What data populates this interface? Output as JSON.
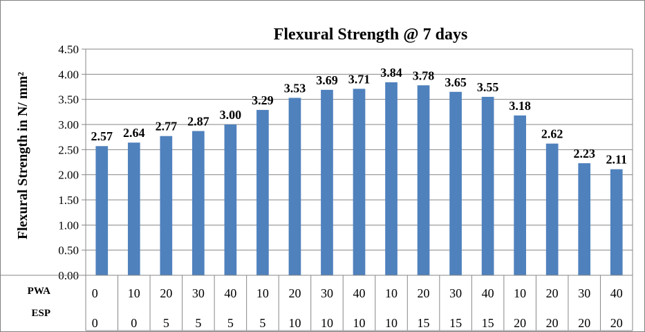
{
  "chart_data": {
    "type": "bar",
    "title": "Flexural Strength @ 7 days",
    "ylabel": "Flexural Strength in N/ mm²",
    "xlabel": "",
    "ylim": [
      0,
      4.5
    ],
    "ytick_step": 0.5,
    "grid": true,
    "bar_color": "#4f81bd",
    "category_rows": [
      {
        "name": "PWA",
        "values": [
          "0",
          "10",
          "20",
          "30",
          "40",
          "10",
          "20",
          "30",
          "40",
          "10",
          "20",
          "30",
          "40",
          "10",
          "20",
          "30",
          "40"
        ]
      },
      {
        "name": "ESP",
        "values": [
          "0",
          "0",
          "5",
          "5",
          "5",
          "5",
          "10",
          "10",
          "10",
          "10",
          "15",
          "15",
          "15",
          "20",
          "20",
          "20",
          "20"
        ]
      }
    ],
    "values": [
      2.57,
      2.64,
      2.77,
      2.87,
      3.0,
      3.29,
      3.53,
      3.69,
      3.71,
      3.84,
      3.78,
      3.65,
      3.55,
      3.18,
      2.62,
      2.23,
      2.11
    ],
    "value_labels": [
      "2.57",
      "2.64",
      "2.77",
      "2.87",
      "3.00",
      "3.29",
      "3.53",
      "3.69",
      "3.71",
      "3.84",
      "3.78",
      "3.65",
      "3.55",
      "3.18",
      "2.62",
      "2.23",
      "2.11"
    ]
  }
}
